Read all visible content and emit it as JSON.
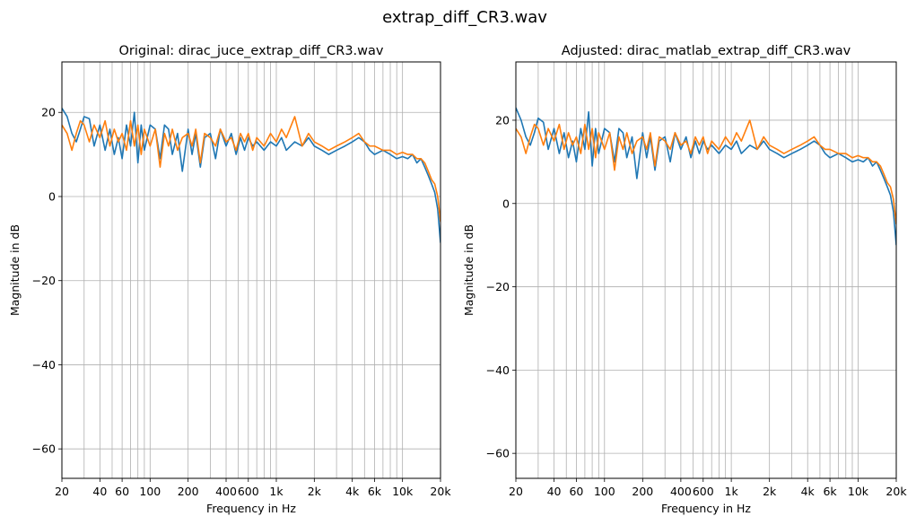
{
  "figure": {
    "title": "extrap_diff_CR3.wav"
  },
  "colors": {
    "series_1": "#1f77b4",
    "series_2": "#ff7f0e",
    "grid": "#b0b0b0"
  },
  "chart_data": [
    {
      "type": "line",
      "title": "Original: dirac_juce_extrap_diff_CR3.wav",
      "xlabel": "Frequency in Hz",
      "ylabel": "Magnitude in dB",
      "xscale": "log",
      "xlim": [
        20,
        20000
      ],
      "ylim": [
        -67,
        32
      ],
      "grid": true,
      "xticks": [
        {
          "value": 20,
          "label": "20"
        },
        {
          "value": 40,
          "label": "40"
        },
        {
          "value": 60,
          "label": "60"
        },
        {
          "value": 100,
          "label": "100"
        },
        {
          "value": 200,
          "label": "200"
        },
        {
          "value": 400,
          "label": "400"
        },
        {
          "value": 600,
          "label": "600"
        },
        {
          "value": 1000,
          "label": "1k"
        },
        {
          "value": 2000,
          "label": "2k"
        },
        {
          "value": 4000,
          "label": "4k"
        },
        {
          "value": 6000,
          "label": "6k"
        },
        {
          "value": 10000,
          "label": "10k"
        },
        {
          "value": 20000,
          "label": "20k"
        }
      ],
      "yticks": [
        {
          "value": 20,
          "label": "20"
        },
        {
          "value": 0,
          "label": "0"
        },
        {
          "value": -20,
          "label": "−20"
        },
        {
          "value": -40,
          "label": "−40"
        },
        {
          "value": -60,
          "label": "−60"
        }
      ],
      "series": [
        {
          "color": "#1f77b4",
          "x": [
            20,
            22,
            24,
            26,
            28,
            30,
            33,
            36,
            40,
            44,
            48,
            52,
            56,
            60,
            65,
            70,
            75,
            80,
            85,
            90,
            100,
            110,
            120,
            130,
            140,
            150,
            165,
            180,
            200,
            215,
            230,
            250,
            270,
            300,
            330,
            360,
            400,
            440,
            480,
            520,
            560,
            600,
            650,
            700,
            800,
            900,
            1000,
            1100,
            1200,
            1400,
            1600,
            1800,
            2000,
            2300,
            2600,
            3000,
            3500,
            4000,
            4500,
            5000,
            5500,
            6000,
            7000,
            8000,
            9000,
            10000,
            11000,
            12000,
            13000,
            14000,
            15000,
            16000,
            17000,
            18000,
            19000,
            20000
          ],
          "y": [
            21,
            19,
            15,
            13,
            16,
            19,
            18.5,
            12,
            17,
            11,
            16,
            10,
            14,
            9,
            17,
            12,
            20,
            8,
            17,
            11,
            17,
            16,
            9,
            17,
            16,
            10,
            15,
            6,
            16,
            10,
            15,
            7,
            14,
            15,
            9,
            16,
            12,
            15,
            10,
            14,
            11,
            14,
            12,
            13,
            11,
            13,
            12,
            14,
            11,
            13,
            12,
            14,
            12,
            11,
            10,
            11,
            12,
            13,
            14,
            13,
            11,
            10,
            11,
            10,
            9,
            9.5,
            9,
            10,
            8,
            9,
            7,
            5,
            3,
            1,
            -3,
            -11
          ]
        },
        {
          "color": "#ff7f0e",
          "x": [
            20,
            22,
            24,
            26,
            28,
            30,
            33,
            36,
            40,
            44,
            48,
            52,
            56,
            60,
            65,
            70,
            75,
            80,
            85,
            90,
            100,
            110,
            120,
            130,
            140,
            150,
            165,
            180,
            200,
            215,
            230,
            250,
            270,
            300,
            330,
            360,
            400,
            440,
            480,
            520,
            560,
            600,
            650,
            700,
            800,
            900,
            1000,
            1100,
            1200,
            1400,
            1600,
            1800,
            2000,
            2300,
            2600,
            3000,
            3500,
            4000,
            4500,
            5000,
            5500,
            6000,
            7000,
            8000,
            9000,
            10000,
            11000,
            12000,
            13000,
            14000,
            15000,
            16000,
            17000,
            18000,
            19000,
            20000
          ],
          "y": [
            17,
            15,
            11,
            15,
            18,
            17,
            13,
            17,
            14,
            18,
            12,
            16,
            13,
            15,
            11,
            18,
            12,
            17,
            10,
            16,
            12,
            16,
            7,
            15,
            12,
            16,
            11,
            14,
            15,
            12,
            16,
            8,
            15,
            14,
            12,
            16,
            13,
            14,
            11,
            15,
            13,
            15,
            11,
            14,
            12,
            15,
            13,
            16,
            14,
            19,
            12,
            15,
            13,
            12,
            11,
            12,
            13,
            14,
            15,
            13,
            12,
            12,
            11,
            11,
            10,
            10.5,
            10,
            10,
            9,
            9,
            8,
            6,
            4,
            3,
            0,
            -6
          ]
        }
      ]
    },
    {
      "type": "line",
      "title": "Adjusted: dirac_matlab_extrap_diff_CR3.wav",
      "xlabel": "Frequency in Hz",
      "ylabel": "Magnitude in dB",
      "xscale": "log",
      "xlim": [
        20,
        20000
      ],
      "ylim": [
        -66,
        34
      ],
      "grid": true,
      "xticks": [
        {
          "value": 20,
          "label": "20"
        },
        {
          "value": 40,
          "label": "40"
        },
        {
          "value": 60,
          "label": "60"
        },
        {
          "value": 100,
          "label": "100"
        },
        {
          "value": 200,
          "label": "200"
        },
        {
          "value": 400,
          "label": "400"
        },
        {
          "value": 600,
          "label": "600"
        },
        {
          "value": 1000,
          "label": "1k"
        },
        {
          "value": 2000,
          "label": "2k"
        },
        {
          "value": 4000,
          "label": "4k"
        },
        {
          "value": 6000,
          "label": "6k"
        },
        {
          "value": 10000,
          "label": "10k"
        },
        {
          "value": 20000,
          "label": "20k"
        }
      ],
      "yticks": [
        {
          "value": 20,
          "label": "20"
        },
        {
          "value": 0,
          "label": "0"
        },
        {
          "value": -20,
          "label": "−20"
        },
        {
          "value": -40,
          "label": "−40"
        },
        {
          "value": -60,
          "label": "−60"
        }
      ],
      "series": [
        {
          "color": "#1f77b4",
          "x": [
            20,
            22,
            24,
            26,
            28,
            30,
            33,
            36,
            40,
            44,
            48,
            52,
            56,
            60,
            65,
            70,
            75,
            80,
            85,
            90,
            100,
            110,
            120,
            130,
            140,
            150,
            165,
            180,
            200,
            215,
            230,
            250,
            270,
            300,
            330,
            360,
            400,
            440,
            480,
            520,
            560,
            600,
            650,
            700,
            800,
            900,
            1000,
            1100,
            1200,
            1400,
            1600,
            1800,
            2000,
            2300,
            2600,
            3000,
            3500,
            4000,
            4500,
            5000,
            5500,
            6000,
            7000,
            8000,
            9000,
            10000,
            11000,
            12000,
            13000,
            14000,
            15000,
            16000,
            17000,
            18000,
            19000,
            20000
          ],
          "y": [
            23,
            20,
            16,
            14,
            17,
            20.5,
            19.5,
            13,
            18,
            12,
            17,
            11,
            15,
            10,
            18,
            13,
            22,
            9,
            18,
            12,
            18,
            17,
            10,
            18,
            17,
            11,
            16,
            6,
            17,
            11,
            16,
            8,
            15,
            16,
            10,
            17,
            13,
            16,
            11,
            15,
            12,
            15,
            13,
            14,
            12,
            14,
            13,
            15,
            12,
            14,
            13,
            15,
            13,
            12,
            11,
            12,
            13,
            14,
            15,
            14,
            12,
            11,
            12,
            11,
            10,
            10.5,
            10,
            11,
            9,
            10,
            8,
            6,
            4,
            2,
            -2,
            -10
          ]
        },
        {
          "color": "#ff7f0e",
          "x": [
            20,
            22,
            24,
            26,
            28,
            30,
            33,
            36,
            40,
            44,
            48,
            52,
            56,
            60,
            65,
            70,
            75,
            80,
            85,
            90,
            100,
            110,
            120,
            130,
            140,
            150,
            165,
            180,
            200,
            215,
            230,
            250,
            270,
            300,
            330,
            360,
            400,
            440,
            480,
            520,
            560,
            600,
            650,
            700,
            800,
            900,
            1000,
            1100,
            1200,
            1400,
            1600,
            1800,
            2000,
            2300,
            2600,
            3000,
            3500,
            4000,
            4500,
            5000,
            5500,
            6000,
            7000,
            8000,
            9000,
            10000,
            11000,
            12000,
            13000,
            14000,
            15000,
            16000,
            17000,
            18000,
            19000,
            20000
          ],
          "y": [
            18,
            16,
            12,
            16,
            19,
            18,
            14,
            18,
            15,
            19,
            13,
            17,
            14,
            16,
            12,
            19,
            13,
            18,
            11,
            17,
            13,
            17,
            8,
            16,
            13,
            17,
            12,
            15,
            16,
            13,
            17,
            9,
            16,
            15,
            13,
            17,
            14,
            15,
            12,
            16,
            14,
            16,
            12,
            15,
            13,
            16,
            14,
            17,
            15,
            20,
            13,
            16,
            14,
            13,
            12,
            13,
            14,
            15,
            16,
            14,
            13,
            13,
            12,
            12,
            11,
            11.5,
            11,
            11,
            10,
            10,
            9,
            7,
            5,
            4,
            1,
            -5
          ]
        }
      ]
    }
  ]
}
